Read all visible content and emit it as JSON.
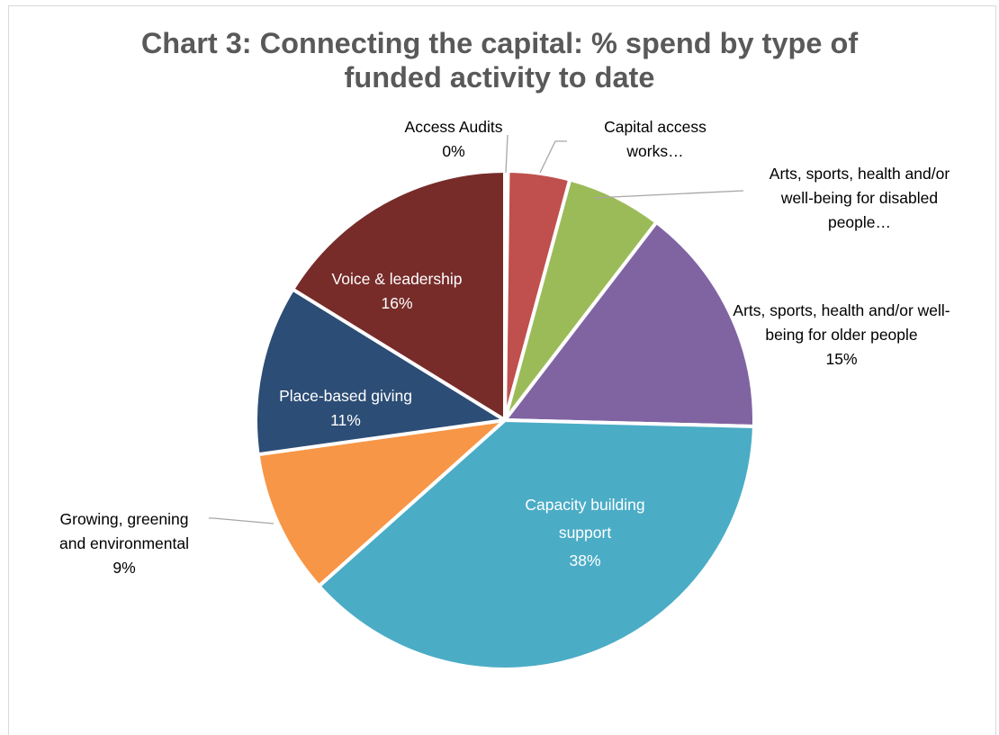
{
  "chart_data": {
    "type": "pie",
    "title_lines": [
      "Chart 3: Connecting the capital: % spend by type of",
      "funded activity to date"
    ],
    "slices": [
      {
        "name": "Access Audits",
        "value": 0.2,
        "label_lines": [
          "Access Audits",
          "0%"
        ],
        "color": "#4472c4",
        "label_color": "#000000"
      },
      {
        "name": "Capital access works",
        "value": 4,
        "label_lines": [
          "Capital access",
          "works…"
        ],
        "color": "#c0504d",
        "label_color": "#000000"
      },
      {
        "name": "Arts, sports, health and/or well-being for disabled people",
        "value": 6.2,
        "label_lines": [
          "Arts, sports, health and/or",
          "well-being for disabled",
          "people…"
        ],
        "color": "#9bbb59",
        "label_color": "#000000"
      },
      {
        "name": "Arts, sports, health and/or well-being for older people",
        "value": 15,
        "label_lines": [
          "Arts, sports, health and/or well-",
          "being  for older people",
          "15%"
        ],
        "color": "#8064a2",
        "label_color": "#000000"
      },
      {
        "name": "Capacity building support",
        "value": 38,
        "label_lines": [
          "Capacity building",
          "support",
          "38%"
        ],
        "color": "#4bacc6",
        "label_color": "#ffffff"
      },
      {
        "name": "Growing, greening and environmental",
        "value": 9.4,
        "label_lines": [
          "Growing, greening",
          "and environmental",
          "9%"
        ],
        "color": "#f79646",
        "label_color": "#000000"
      },
      {
        "name": "Place-based giving",
        "value": 11,
        "label_lines": [
          "Place-based giving",
          "11%"
        ],
        "color": "#2c4d75",
        "label_color": "#ffffff"
      },
      {
        "name": "Voice & leadership",
        "value": 16.2,
        "label_lines": [
          "Voice & leadership",
          "16%"
        ],
        "color": "#772c2a",
        "label_color": "#ffffff"
      }
    ],
    "start_angle": "12 o'clock",
    "direction": "clockwise",
    "legend": "none",
    "leader_line_color": "#a6a6a6",
    "slice_border_color": "#ffffff"
  }
}
